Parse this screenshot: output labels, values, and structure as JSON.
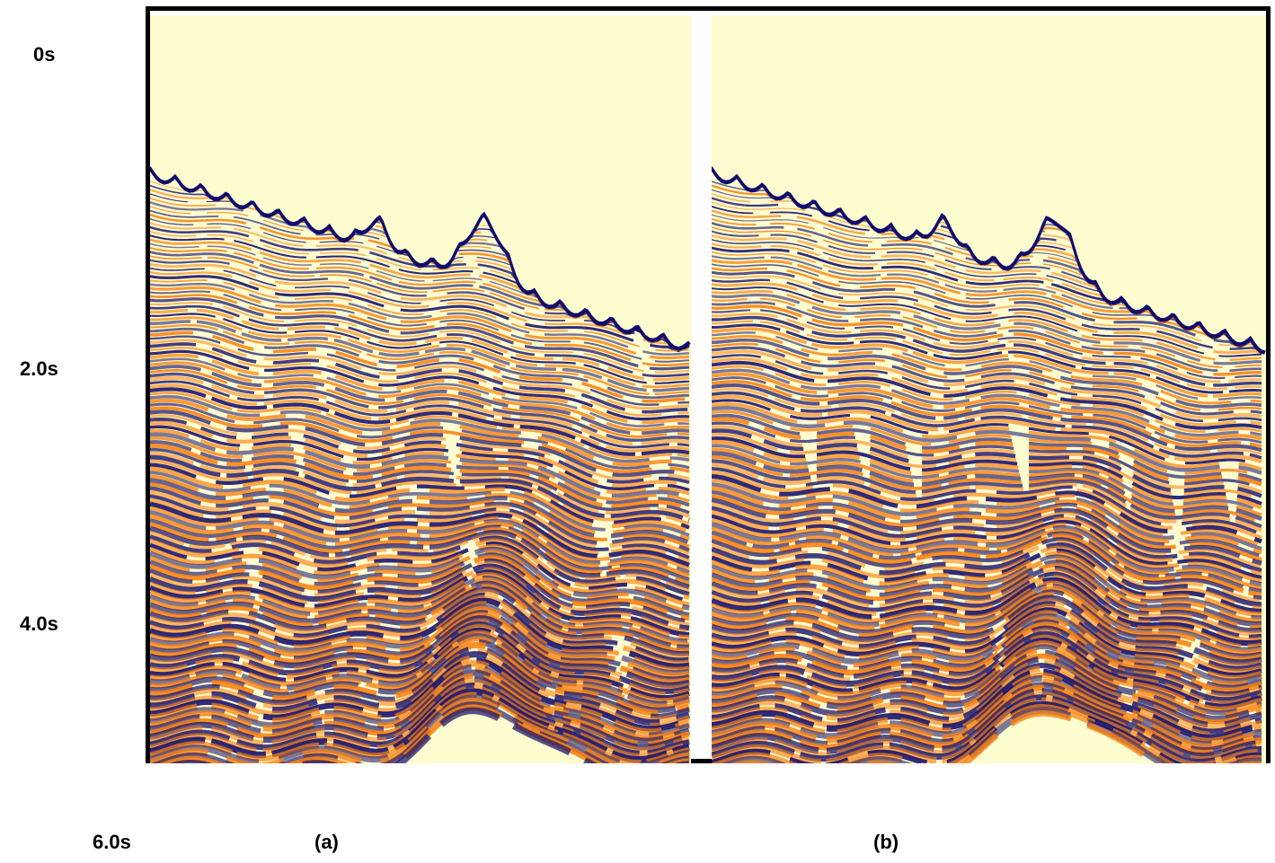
{
  "time_axis": {
    "labels": [
      "0s",
      "2.0s",
      "4.0s",
      "6.0s"
    ]
  },
  "panels": [
    {
      "label": "(a)",
      "section": "a"
    },
    {
      "label": "(b)",
      "section": "b"
    }
  ],
  "colors": {
    "background": "#fdfdd0",
    "positive": "#f88010",
    "negative": "#100c6c",
    "frame": "#000000"
  }
}
